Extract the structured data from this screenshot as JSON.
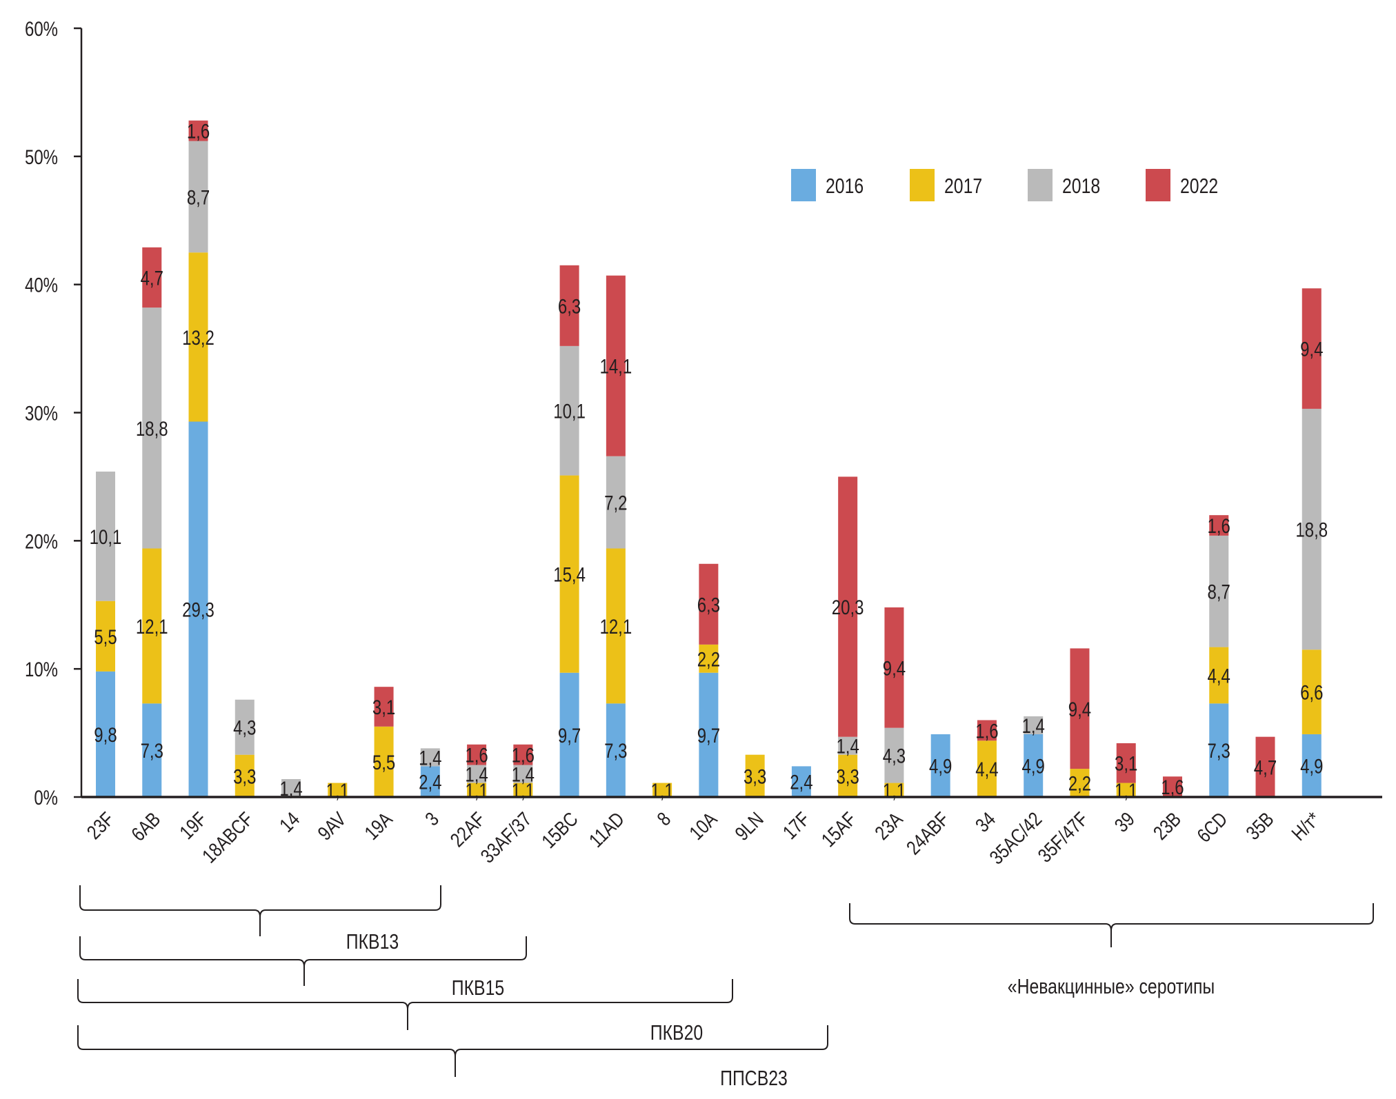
{
  "chart_data": {
    "type": "bar",
    "stacked": true,
    "title": "",
    "xlabel": "",
    "ylabel": "",
    "ylim": [
      0,
      60
    ],
    "yticks": [
      0,
      10,
      20,
      30,
      40,
      50,
      60
    ],
    "ytick_labels": [
      "0%",
      "10%",
      "20%",
      "30%",
      "40%",
      "50%",
      "60%"
    ],
    "grid": false,
    "legend_position": "top-right",
    "categories": [
      "23F",
      "6AB",
      "19F",
      "18ABCF",
      "14",
      "9AV",
      "19A",
      "3",
      "22AF",
      "33AF/37",
      "15BC",
      "11AD",
      "8",
      "10A",
      "9LN",
      "17F",
      "15AF",
      "23A",
      "24ABF",
      "34",
      "35AC/42",
      "35F/47F",
      "39",
      "23B",
      "6CD",
      "35B",
      "Н/т*"
    ],
    "series": [
      {
        "name": "2016",
        "color": "#6aace0",
        "values": [
          9.8,
          7.3,
          29.3,
          null,
          null,
          null,
          null,
          2.4,
          null,
          null,
          9.7,
          7.3,
          null,
          9.7,
          null,
          2.4,
          null,
          null,
          4.9,
          null,
          4.9,
          null,
          null,
          null,
          7.3,
          null,
          4.9
        ],
        "labels": [
          "9,8",
          "7,3",
          "29,3",
          null,
          null,
          null,
          null,
          "2,4",
          null,
          null,
          "9,7",
          "7,3",
          null,
          "9,7",
          null,
          "2,4",
          null,
          null,
          "4,9",
          null,
          "4,9",
          null,
          null,
          null,
          "7,3",
          null,
          "4,9"
        ]
      },
      {
        "name": "2017",
        "color": "#ecc118",
        "values": [
          5.5,
          12.1,
          13.2,
          3.3,
          null,
          1.1,
          5.5,
          null,
          1.1,
          1.1,
          15.4,
          12.1,
          1.1,
          2.2,
          3.3,
          null,
          3.3,
          1.1,
          null,
          4.4,
          null,
          2.2,
          1.1,
          null,
          4.4,
          null,
          6.6
        ],
        "labels": [
          "5,5",
          "12,1",
          "13,2",
          "3,3",
          null,
          "1,1",
          "5,5",
          null,
          "1,1",
          "1,1",
          "15,4",
          "12,1",
          "1,1",
          "2,2",
          "3,3",
          null,
          "3,3",
          "1,1",
          null,
          "4,4",
          null,
          "2,2",
          "1,1",
          null,
          "4,4",
          null,
          "6,6"
        ]
      },
      {
        "name": "2018",
        "color": "#bababa",
        "values": [
          10.1,
          18.8,
          8.7,
          4.3,
          1.4,
          null,
          null,
          1.4,
          1.4,
          1.4,
          10.1,
          7.2,
          null,
          null,
          null,
          null,
          1.4,
          4.3,
          null,
          null,
          1.4,
          null,
          null,
          null,
          8.7,
          null,
          18.8
        ],
        "labels": [
          "10,1",
          "18,8",
          "8,7",
          "4,3",
          "1,4",
          null,
          null,
          "1,4",
          "1,4",
          "1,4",
          "10,1",
          "7,2",
          null,
          null,
          null,
          null,
          "1,4",
          "4,3",
          null,
          null,
          "1,4",
          null,
          null,
          null,
          "8,7",
          null,
          "18,8"
        ]
      },
      {
        "name": "2022",
        "color": "#cc4a4f",
        "values": [
          null,
          4.7,
          1.6,
          null,
          null,
          null,
          3.1,
          null,
          1.6,
          1.6,
          6.3,
          14.1,
          null,
          6.3,
          null,
          null,
          20.3,
          9.4,
          null,
          1.6,
          null,
          9.4,
          3.1,
          1.6,
          1.6,
          4.7,
          9.4
        ],
        "labels": [
          null,
          "4,7",
          "1,6",
          null,
          null,
          null,
          "3,1",
          null,
          "1,6",
          "1,6",
          "6,3",
          "14,1",
          null,
          "6,3",
          null,
          null,
          "20,3",
          "9,4",
          null,
          "1,6",
          null,
          "9,4",
          "3,1",
          "1,6",
          "1,6",
          "4,7",
          "9,4"
        ]
      }
    ],
    "annotations": {
      "groups": [
        {
          "label": "ПКВ13",
          "from": "23F",
          "to": "3"
        },
        {
          "label": "ПКВ15",
          "from": "23F",
          "to": "33AF/37"
        },
        {
          "label": "ПКВ20",
          "from": "23F",
          "to": "10A"
        },
        {
          "label": "ППСВ23",
          "from": "23F",
          "to": "17F"
        },
        {
          "label": "«Невакцинные» серотипы",
          "from": "15AF",
          "to": "Н/т*"
        }
      ]
    }
  }
}
